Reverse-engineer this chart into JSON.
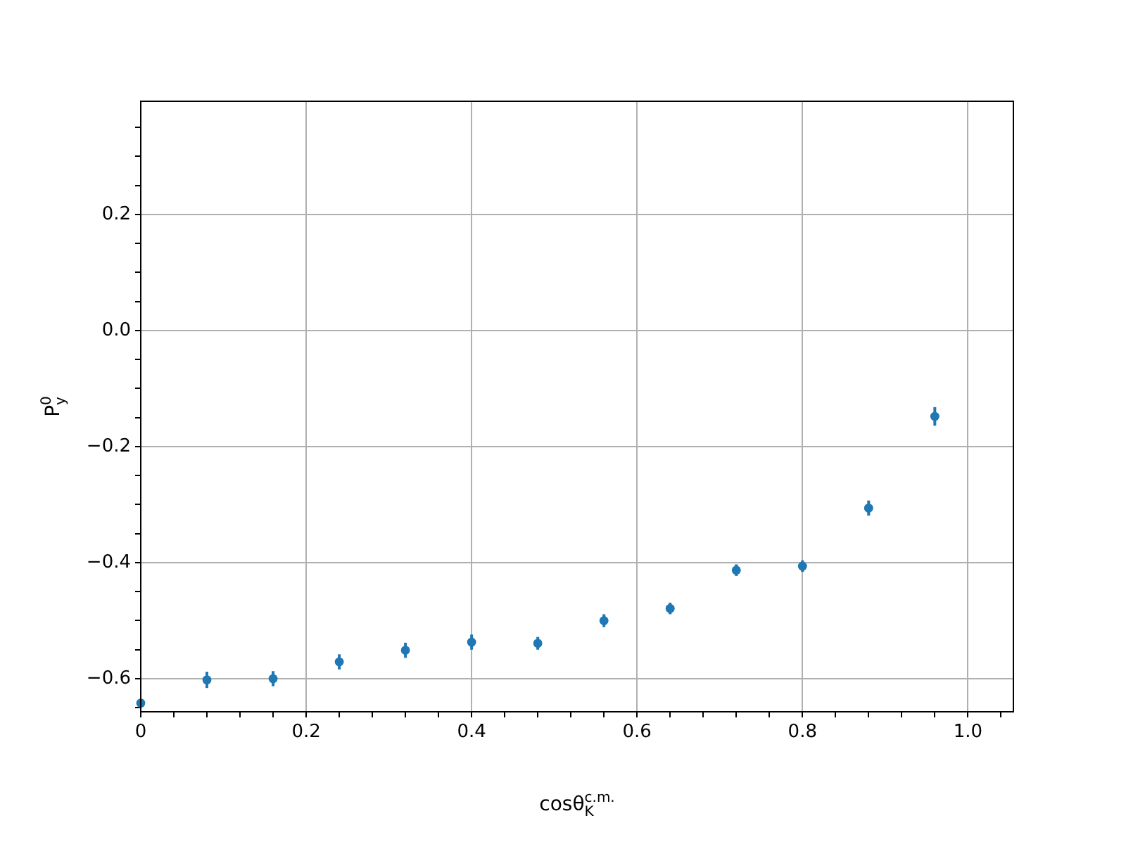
{
  "chart_data": {
    "type": "scatter",
    "xlabel": "cosθ$_{K}$$^{c.m.}$",
    "ylabel": "P$_{y}$$^{0}$",
    "x": [
      0,
      0.08,
      0.16,
      0.24,
      0.32,
      0.4,
      0.48,
      0.56,
      0.64,
      0.72,
      0.8,
      0.88,
      0.96
    ],
    "series": [
      {
        "color": "#1f77b4",
        "values": [
          -0.642,
          -0.602,
          -0.6,
          -0.571,
          -0.551,
          -0.537,
          -0.539,
          -0.5,
          -0.479,
          -0.413,
          -0.406,
          -0.306,
          -0.148
        ],
        "errors": [
          0.005,
          0.014,
          0.013,
          0.013,
          0.013,
          0.013,
          0.011,
          0.011,
          0.01,
          0.01,
          0.01,
          0.013,
          0.016
        ]
      }
    ],
    "xlim": [
      0,
      1.055
    ],
    "ylim": [
      -0.657,
      0.395
    ],
    "xticks": [
      0,
      {
        "value": 0.04,
        "label": null
      },
      {
        "value": 0.08,
        "label": null
      },
      {
        "value": 0.12,
        "label": null
      },
      {
        "value": 0.16,
        "label": null
      },
      0.2,
      {
        "value": 0.24,
        "label": null
      },
      {
        "value": 0.28,
        "label": null
      },
      {
        "value": 0.32,
        "label": null
      },
      {
        "value": 0.36,
        "label": null
      },
      0.4,
      {
        "value": 0.44,
        "label": null
      },
      {
        "value": 0.48,
        "label": null
      },
      {
        "value": 0.52,
        "label": null
      },
      {
        "value": 0.56,
        "label": null
      },
      0.6,
      {
        "value": 0.64,
        "label": null
      },
      {
        "value": 0.68,
        "label": null
      },
      {
        "value": 0.72,
        "label": null
      },
      {
        "value": 0.76,
        "label": null
      },
      0.8,
      {
        "value": 0.84,
        "label": null
      },
      {
        "value": 0.88,
        "label": null
      },
      {
        "value": 0.92,
        "label": null
      },
      {
        "value": 0.96,
        "label": null
      },
      {
        "value": 1.0,
        "label": "1.0"
      },
      {
        "value": 1.04,
        "label": null
      }
    ],
    "yticks": [
      {
        "value": -0.65,
        "label": null
      },
      {
        "value": -0.6,
        "label": "−0.6"
      },
      {
        "value": -0.55,
        "label": null
      },
      {
        "value": -0.5,
        "label": null
      },
      {
        "value": -0.45,
        "label": null
      },
      {
        "value": -0.4,
        "label": "−0.4"
      },
      {
        "value": -0.35,
        "label": null
      },
      {
        "value": -0.3,
        "label": null
      },
      {
        "value": -0.25,
        "label": null
      },
      {
        "value": -0.2,
        "label": "−0.2"
      },
      {
        "value": -0.15,
        "label": null
      },
      {
        "value": -0.1,
        "label": null
      },
      {
        "value": -0.05,
        "label": null
      },
      {
        "value": 0,
        "label": "0.0"
      },
      {
        "value": 0.05,
        "label": null
      },
      {
        "value": 0.1,
        "label": null
      },
      {
        "value": 0.15,
        "label": null
      },
      0.2,
      {
        "value": 0.25,
        "label": null
      },
      {
        "value": 0.3,
        "label": null
      },
      {
        "value": 0.35,
        "label": null
      }
    ],
    "grid": true,
    "marker": "circle",
    "legend": false
  }
}
